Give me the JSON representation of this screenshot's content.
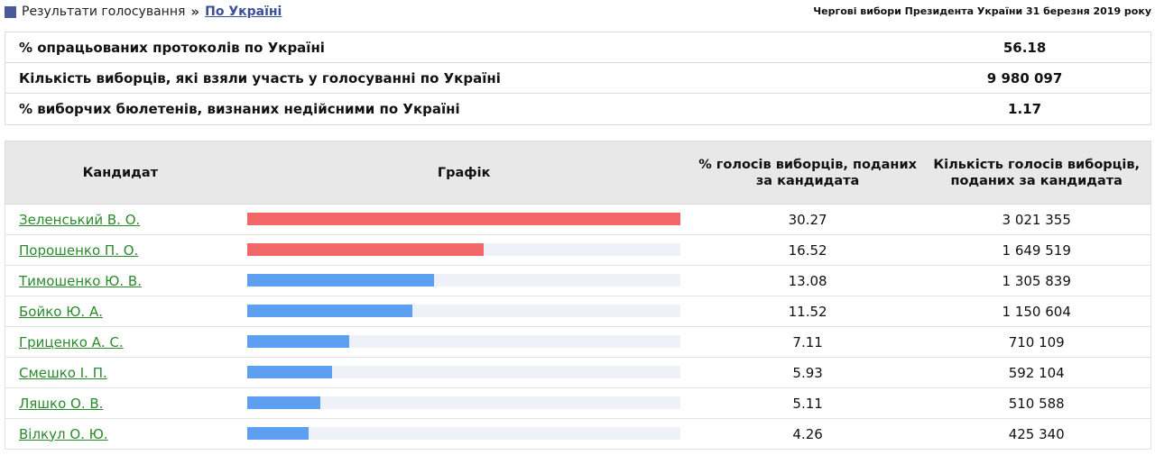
{
  "breadcrumb": {
    "root_label": "Результати голосування",
    "separator": "»",
    "current_label": "По Україні"
  },
  "election_title": "Чергові вибори Президента України 31 березня 2019 року",
  "summary": [
    {
      "label": "% опрацьованих протоколів по Україні",
      "value": "56.18"
    },
    {
      "label": "Кількість виборців, які взяли участь у голосуванні по Україні",
      "value": "9 980 097"
    },
    {
      "label": "% виборчих бюлетенів, визнаних недійсними по Україні",
      "value": "1.17"
    }
  ],
  "table": {
    "headers": {
      "candidate": "Кандидат",
      "graph": "Графік",
      "percent": "% голосів виборців, поданих за кандидата",
      "count": "Кількість голосів виборців, поданих за кандидата"
    },
    "bar_scale_max": 30.27,
    "colors": {
      "top": "#f26667",
      "other": "#5d9ff0",
      "track": "#eef1f7"
    },
    "rows": [
      {
        "name": "Зеленський В. О.",
        "percent": "30.27",
        "votes": "3 021 355",
        "highlight": true
      },
      {
        "name": "Порошенко П. О.",
        "percent": "16.52",
        "votes": "1 649 519",
        "highlight": true
      },
      {
        "name": "Тимошенко Ю. В.",
        "percent": "13.08",
        "votes": "1 305 839",
        "highlight": false
      },
      {
        "name": "Бойко Ю. А.",
        "percent": "11.52",
        "votes": "1 150 604",
        "highlight": false
      },
      {
        "name": "Гриценко А. С.",
        "percent": "7.11",
        "votes": "710 109",
        "highlight": false
      },
      {
        "name": "Смешко І. П.",
        "percent": "5.93",
        "votes": "592 104",
        "highlight": false
      },
      {
        "name": "Ляшко О. В.",
        "percent": "5.11",
        "votes": "510 588",
        "highlight": false
      },
      {
        "name": "Вілкул О. Ю.",
        "percent": "4.26",
        "votes": "425 340",
        "highlight": false
      }
    ]
  }
}
